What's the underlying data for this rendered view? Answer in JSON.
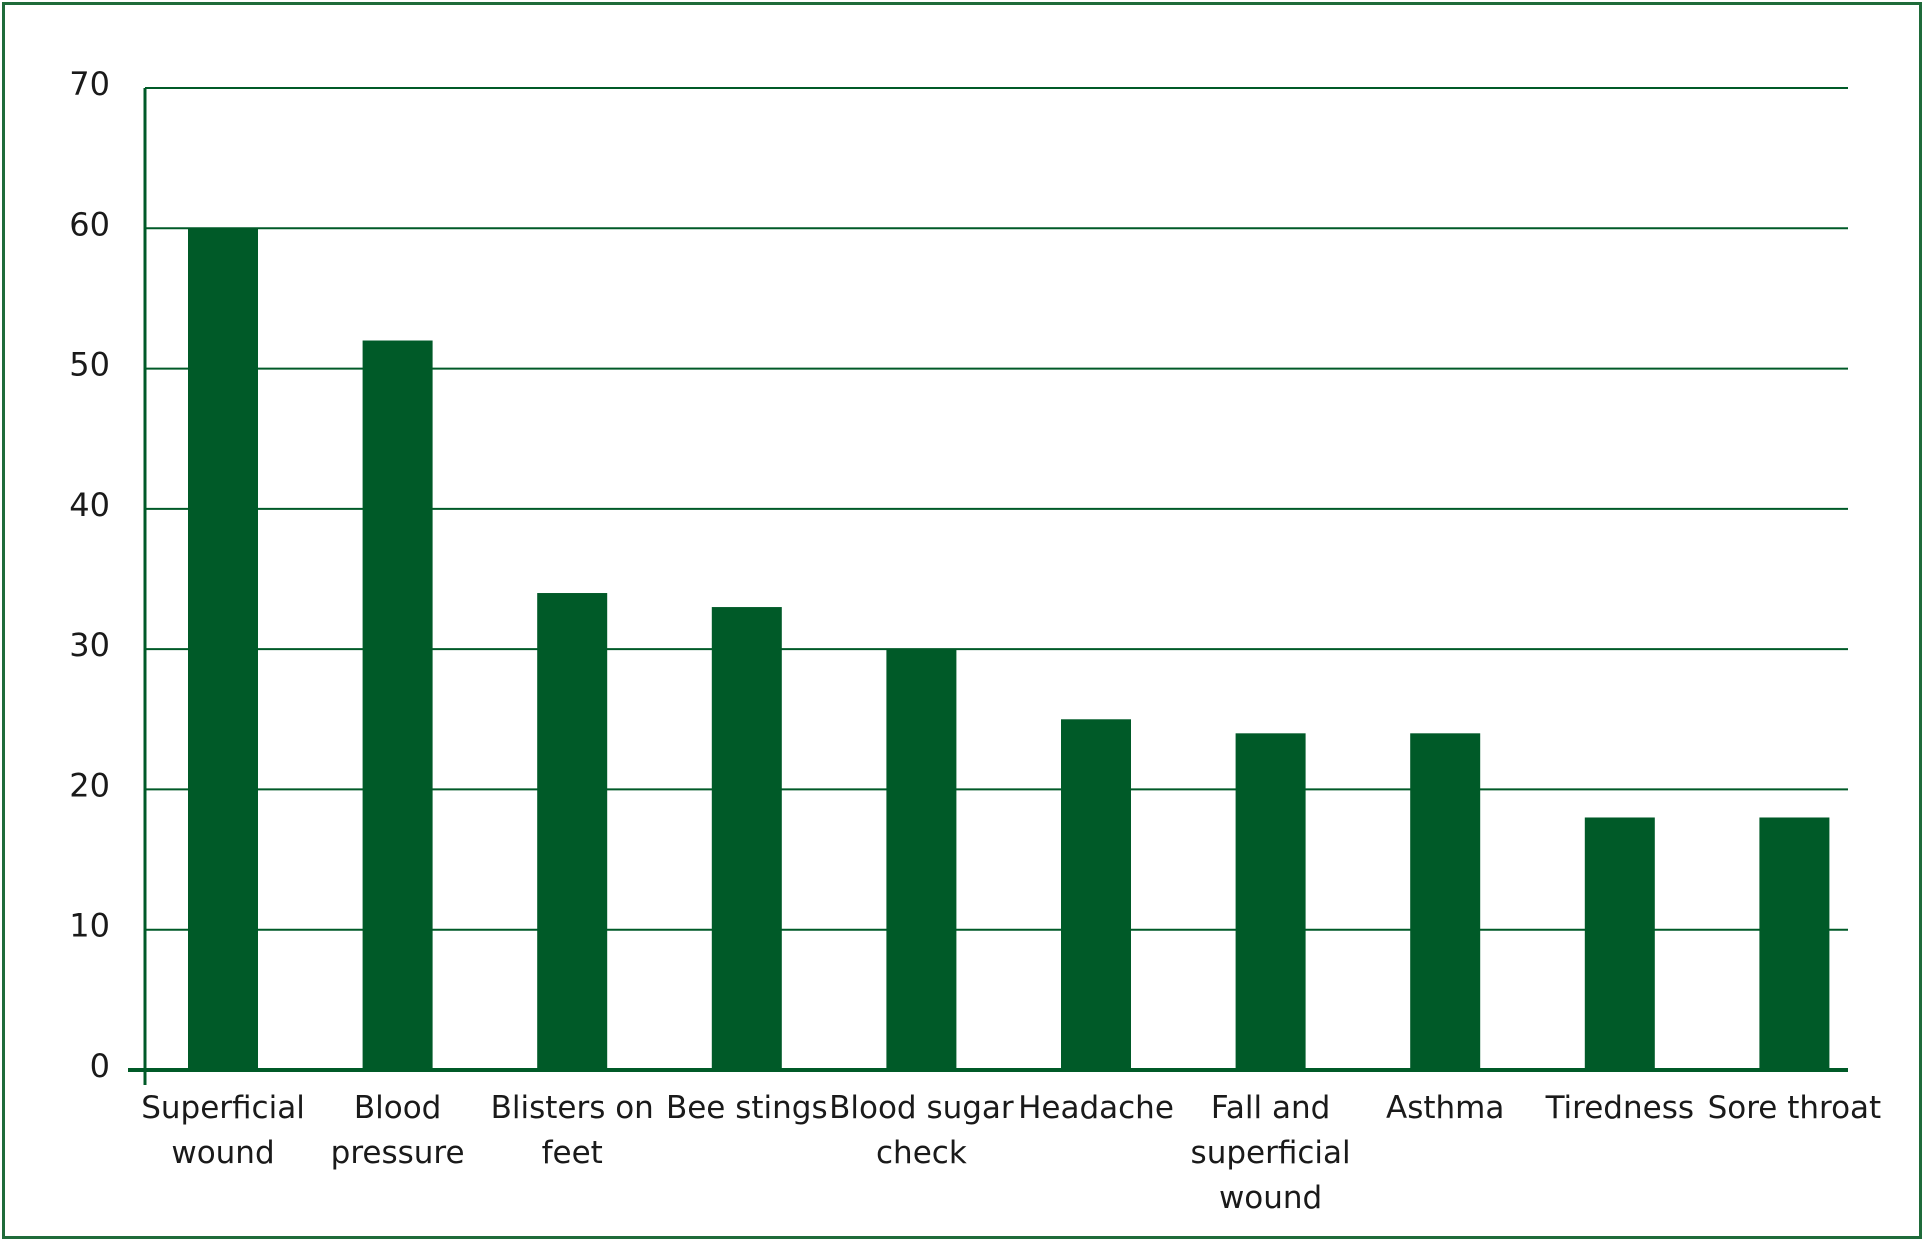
{
  "chart_data": {
    "type": "bar",
    "categories": [
      [
        "Superficial",
        "wound"
      ],
      [
        "Blood",
        "pressure"
      ],
      [
        "Blisters on",
        "feet"
      ],
      [
        "Bee stings"
      ],
      [
        "Blood sugar",
        "check"
      ],
      [
        "Headache"
      ],
      [
        "Fall and",
        "superficial",
        "wound"
      ],
      [
        "Asthma"
      ],
      [
        "Tiredness"
      ],
      [
        "Sore throat"
      ]
    ],
    "values": [
      60,
      52,
      34,
      33,
      30,
      25,
      24,
      24,
      18,
      18
    ],
    "yticks": [
      0,
      10,
      20,
      30,
      40,
      50,
      60,
      70
    ],
    "ylim": [
      0,
      70
    ],
    "grid": true,
    "bar_color": "#005a28",
    "grid_color": "#005a28",
    "frame_color": "#1f6b3a"
  }
}
